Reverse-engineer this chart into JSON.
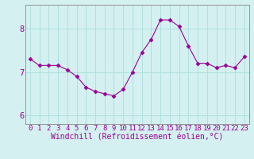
{
  "x": [
    0,
    1,
    2,
    3,
    4,
    5,
    6,
    7,
    8,
    9,
    10,
    11,
    12,
    13,
    14,
    15,
    16,
    17,
    18,
    19,
    20,
    21,
    22,
    23
  ],
  "y": [
    7.3,
    7.15,
    7.15,
    7.15,
    7.05,
    6.9,
    6.65,
    6.55,
    6.5,
    6.45,
    6.6,
    7.0,
    7.45,
    7.75,
    8.2,
    8.2,
    8.05,
    7.6,
    7.2,
    7.2,
    7.1,
    7.15,
    7.1,
    7.35
  ],
  "line_color": "#990099",
  "marker": "D",
  "marker_size": 2.5,
  "background_color": "#d4f0f0",
  "grid_color": "#aadddd",
  "xlabel": "Windchill (Refroidissement éolien,°C)",
  "xlim": [
    -0.5,
    23.5
  ],
  "ylim": [
    5.8,
    8.55
  ],
  "yticks": [
    6,
    7,
    8
  ],
  "xticks": [
    0,
    1,
    2,
    3,
    4,
    5,
    6,
    7,
    8,
    9,
    10,
    11,
    12,
    13,
    14,
    15,
    16,
    17,
    18,
    19,
    20,
    21,
    22,
    23
  ],
  "tick_label_fontsize": 6.5,
  "xlabel_fontsize": 7.0,
  "spine_color": "#888888"
}
